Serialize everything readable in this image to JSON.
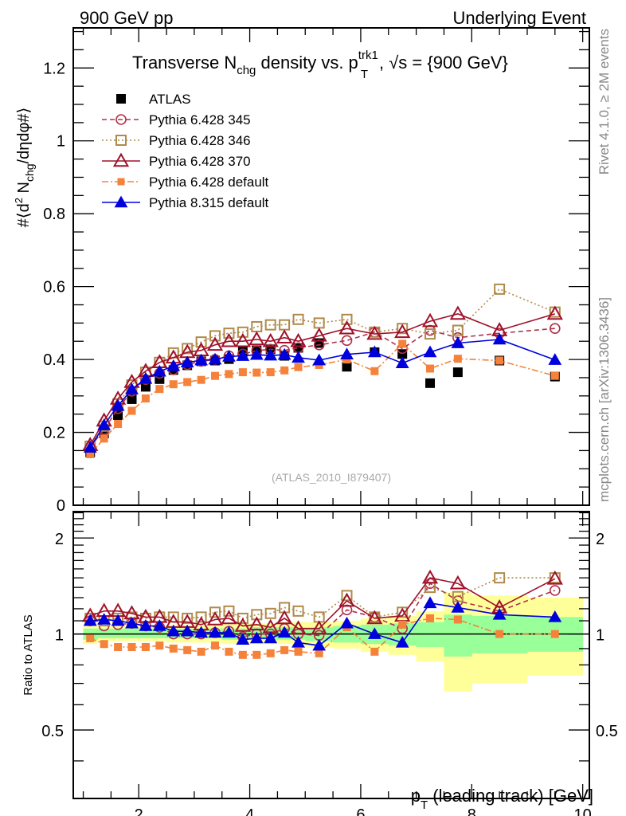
{
  "header": {
    "left_label": "900 GeV pp",
    "right_label": "Underlying Event"
  },
  "side_labels": {
    "rivet": "Rivet 4.1.0, ≥ 2M events",
    "mcplots": "mcplots.cern.ch [arXiv:1306.3436]"
  },
  "chart_data": [
    {
      "type": "line",
      "panel": "main",
      "title": "Transverse N_chg density vs. p_T^trk1, √s = {900 GeV}",
      "title_parts": {
        "a": "Transverse N",
        "a_sub": "chg",
        "b": " density vs. p",
        "b_sup": "trk1",
        "b_sub": "T",
        "c": ", √s = {900 GeV}"
      },
      "xlabel": "p_T (leading track) [GeV]",
      "ylabel": "#⟨d² N_chg/dηdφ#⟩",
      "ylabel_parts": {
        "a": "#⟨d",
        "sup": "2",
        "b": " N",
        "sub": "chg",
        "c": "/dηdφ#⟩"
      },
      "watermark": "(ATLAS_2010_I879407)",
      "xlim": [
        0.82,
        10.12
      ],
      "ylim": [
        0,
        1.31
      ],
      "yticks": [
        0,
        0.2,
        0.4,
        0.6,
        0.8,
        1,
        1.2
      ],
      "ytick_labels": [
        "0",
        "0.2",
        "0.4",
        "0.6",
        "0.8",
        "1",
        "1.2"
      ],
      "legend_position": "top-left",
      "x": [
        1.125,
        1.375,
        1.625,
        1.875,
        2.125,
        2.375,
        2.625,
        2.875,
        3.125,
        3.375,
        3.625,
        3.875,
        4.125,
        4.375,
        4.625,
        4.875,
        5.25,
        5.75,
        6.25,
        6.75,
        7.25,
        7.75,
        8.5,
        9.5
      ],
      "series": [
        {
          "name": "ATLAS",
          "color": "#000000",
          "marker": "filled-square",
          "line": "none",
          "values": [
            0.145,
            0.197,
            0.247,
            0.291,
            0.325,
            0.346,
            0.371,
            0.384,
            0.395,
            0.397,
            0.401,
            0.425,
            0.425,
            0.428,
            0.41,
            0.432,
            0.445,
            0.38,
            0.42,
            0.415,
            0.335,
            0.365,
            0.397,
            0.353
          ]
        },
        {
          "name": "Pythia 6.428 345",
          "color": "#b0304a",
          "marker": "open-circle",
          "line": "dashed",
          "values": [
            0.16,
            0.208,
            0.265,
            0.313,
            0.345,
            0.362,
            0.372,
            0.386,
            0.395,
            0.4,
            0.41,
            0.415,
            0.424,
            0.428,
            0.425,
            0.432,
            0.44,
            0.452,
            0.475,
            0.43,
            0.48,
            0.46,
            0.472,
            0.485
          ]
        },
        {
          "name": "Pythia 6.428 346",
          "color": "#b08a4a",
          "marker": "open-square",
          "line": "dotted",
          "values": [
            0.162,
            0.217,
            0.278,
            0.33,
            0.365,
            0.392,
            0.418,
            0.43,
            0.448,
            0.465,
            0.472,
            0.475,
            0.49,
            0.495,
            0.495,
            0.51,
            0.5,
            0.51,
            0.475,
            0.485,
            0.47,
            0.48,
            0.593,
            0.53
          ]
        },
        {
          "name": "Pythia 6.428 370",
          "color": "#a0102a",
          "marker": "open-triangle",
          "line": "solid",
          "values": [
            0.165,
            0.232,
            0.292,
            0.338,
            0.368,
            0.392,
            0.405,
            0.42,
            0.425,
            0.44,
            0.45,
            0.45,
            0.455,
            0.45,
            0.46,
            0.45,
            0.465,
            0.485,
            0.47,
            0.475,
            0.505,
            0.525,
            0.48,
            0.525
          ]
        },
        {
          "name": "Pythia 6.428 default",
          "color": "#f5823a",
          "marker": "filled-square",
          "line": "dashdot",
          "values": [
            0.14,
            0.183,
            0.223,
            0.259,
            0.293,
            0.319,
            0.332,
            0.338,
            0.344,
            0.355,
            0.36,
            0.365,
            0.364,
            0.365,
            0.37,
            0.379,
            0.385,
            0.4,
            0.368,
            0.443,
            0.375,
            0.402,
            0.397,
            0.355
          ]
        },
        {
          "name": "Pythia 8.315 default",
          "color": "#0000dd",
          "marker": "filled-triangle",
          "line": "solid",
          "values": [
            0.158,
            0.22,
            0.273,
            0.318,
            0.347,
            0.367,
            0.382,
            0.392,
            0.398,
            0.4,
            0.408,
            0.41,
            0.413,
            0.411,
            0.413,
            0.405,
            0.398,
            0.414,
            0.42,
            0.39,
            0.42,
            0.445,
            0.455,
            0.399
          ]
        }
      ]
    },
    {
      "type": "line",
      "panel": "ratio",
      "ylabel": "Ratio to ATLAS",
      "xlabel": "p_T (leading track) [GeV]",
      "xlabel_parts": {
        "a": "p",
        "sub": "T",
        "b": " (leading track) [GeV]"
      },
      "yscale": "log",
      "xlim": [
        0.82,
        10.12
      ],
      "ylim": [
        0.305,
        2.42
      ],
      "xticks": [
        2,
        4,
        6,
        8,
        10
      ],
      "xtick_labels": [
        "2",
        "4",
        "6",
        "8",
        "10"
      ],
      "yticks": [
        0.5,
        1,
        2
      ],
      "ytick_labels": [
        "0.5",
        "1",
        "2"
      ],
      "x": [
        1.125,
        1.375,
        1.625,
        1.875,
        2.125,
        2.375,
        2.625,
        2.875,
        3.125,
        3.375,
        3.625,
        3.875,
        4.125,
        4.375,
        4.625,
        4.875,
        5.25,
        5.75,
        6.25,
        6.75,
        7.25,
        7.75,
        8.5,
        9.5
      ],
      "bin_edges": [
        1.0,
        1.25,
        1.5,
        1.75,
        2.0,
        2.25,
        2.5,
        2.75,
        3.0,
        3.25,
        3.5,
        3.75,
        4.0,
        4.25,
        4.5,
        4.75,
        5.0,
        5.5,
        6.0,
        6.5,
        7.0,
        7.5,
        8.0,
        9.0,
        10.0
      ],
      "bands": {
        "stat_color": "#99ff99",
        "total_color": "#ffff99",
        "stat_lo": [
          0.96,
          0.97,
          0.97,
          0.97,
          0.97,
          0.97,
          0.97,
          0.97,
          0.97,
          0.97,
          0.96,
          0.96,
          0.96,
          0.96,
          0.96,
          0.96,
          0.95,
          0.94,
          0.93,
          0.92,
          0.91,
          0.85,
          0.87,
          0.88
        ],
        "stat_hi": [
          1.04,
          1.04,
          1.04,
          1.04,
          1.04,
          1.04,
          1.04,
          1.04,
          1.04,
          1.04,
          1.04,
          1.04,
          1.05,
          1.05,
          1.05,
          1.05,
          1.05,
          1.06,
          1.07,
          1.08,
          1.09,
          1.15,
          1.14,
          1.13
        ],
        "total_lo": [
          0.93,
          0.95,
          0.95,
          0.95,
          0.95,
          0.95,
          0.94,
          0.94,
          0.94,
          0.94,
          0.93,
          0.93,
          0.93,
          0.93,
          0.93,
          0.92,
          0.91,
          0.9,
          0.88,
          0.86,
          0.82,
          0.66,
          0.7,
          0.74
        ],
        "total_hi": [
          1.07,
          1.06,
          1.06,
          1.06,
          1.06,
          1.06,
          1.07,
          1.07,
          1.07,
          1.07,
          1.08,
          1.08,
          1.08,
          1.08,
          1.09,
          1.09,
          1.09,
          1.1,
          1.12,
          1.14,
          1.18,
          1.35,
          1.32,
          1.3
        ]
      },
      "series": [
        {
          "name": "Pythia 6.428 345",
          "color": "#b0304a",
          "marker": "open-circle",
          "line": "dashed",
          "values": [
            1.1,
            1.06,
            1.07,
            1.08,
            1.06,
            1.05,
            1.0,
            1.0,
            1.0,
            1.01,
            1.02,
            0.98,
            1.0,
            1.0,
            1.04,
            1.0,
            0.99,
            1.19,
            1.13,
            1.04,
            1.44,
            1.27,
            1.18,
            1.37
          ]
        },
        {
          "name": "Pythia 6.428 346",
          "color": "#b08a4a",
          "marker": "open-square",
          "line": "dotted",
          "values": [
            1.12,
            1.1,
            1.12,
            1.13,
            1.12,
            1.13,
            1.13,
            1.12,
            1.13,
            1.17,
            1.18,
            1.12,
            1.15,
            1.16,
            1.21,
            1.18,
            1.13,
            1.32,
            1.13,
            1.17,
            1.4,
            1.31,
            1.5,
            1.5
          ]
        },
        {
          "name": "Pythia 6.428 370",
          "color": "#a0102a",
          "marker": "open-triangle",
          "line": "solid",
          "values": [
            1.14,
            1.18,
            1.18,
            1.16,
            1.13,
            1.13,
            1.09,
            1.09,
            1.07,
            1.11,
            1.12,
            1.06,
            1.07,
            1.05,
            1.12,
            1.04,
            1.04,
            1.27,
            1.12,
            1.14,
            1.5,
            1.44,
            1.21,
            1.49
          ]
        },
        {
          "name": "Pythia 6.428 default",
          "color": "#f5823a",
          "marker": "filled-square",
          "line": "dashdot",
          "values": [
            0.97,
            0.93,
            0.91,
            0.91,
            0.91,
            0.92,
            0.9,
            0.89,
            0.88,
            0.92,
            0.88,
            0.86,
            0.86,
            0.87,
            0.89,
            0.88,
            0.87,
            1.05,
            0.88,
            1.07,
            1.12,
            1.11,
            1.0,
            1.0
          ]
        },
        {
          "name": "Pythia 8.315 default",
          "color": "#0000dd",
          "marker": "filled-triangle",
          "line": "solid",
          "values": [
            1.1,
            1.11,
            1.1,
            1.08,
            1.06,
            1.06,
            1.02,
            1.02,
            1.01,
            1.01,
            1.01,
            0.96,
            0.97,
            0.97,
            1.01,
            0.94,
            0.92,
            1.08,
            1.0,
            0.94,
            1.25,
            1.21,
            1.15,
            1.13
          ]
        }
      ]
    }
  ]
}
